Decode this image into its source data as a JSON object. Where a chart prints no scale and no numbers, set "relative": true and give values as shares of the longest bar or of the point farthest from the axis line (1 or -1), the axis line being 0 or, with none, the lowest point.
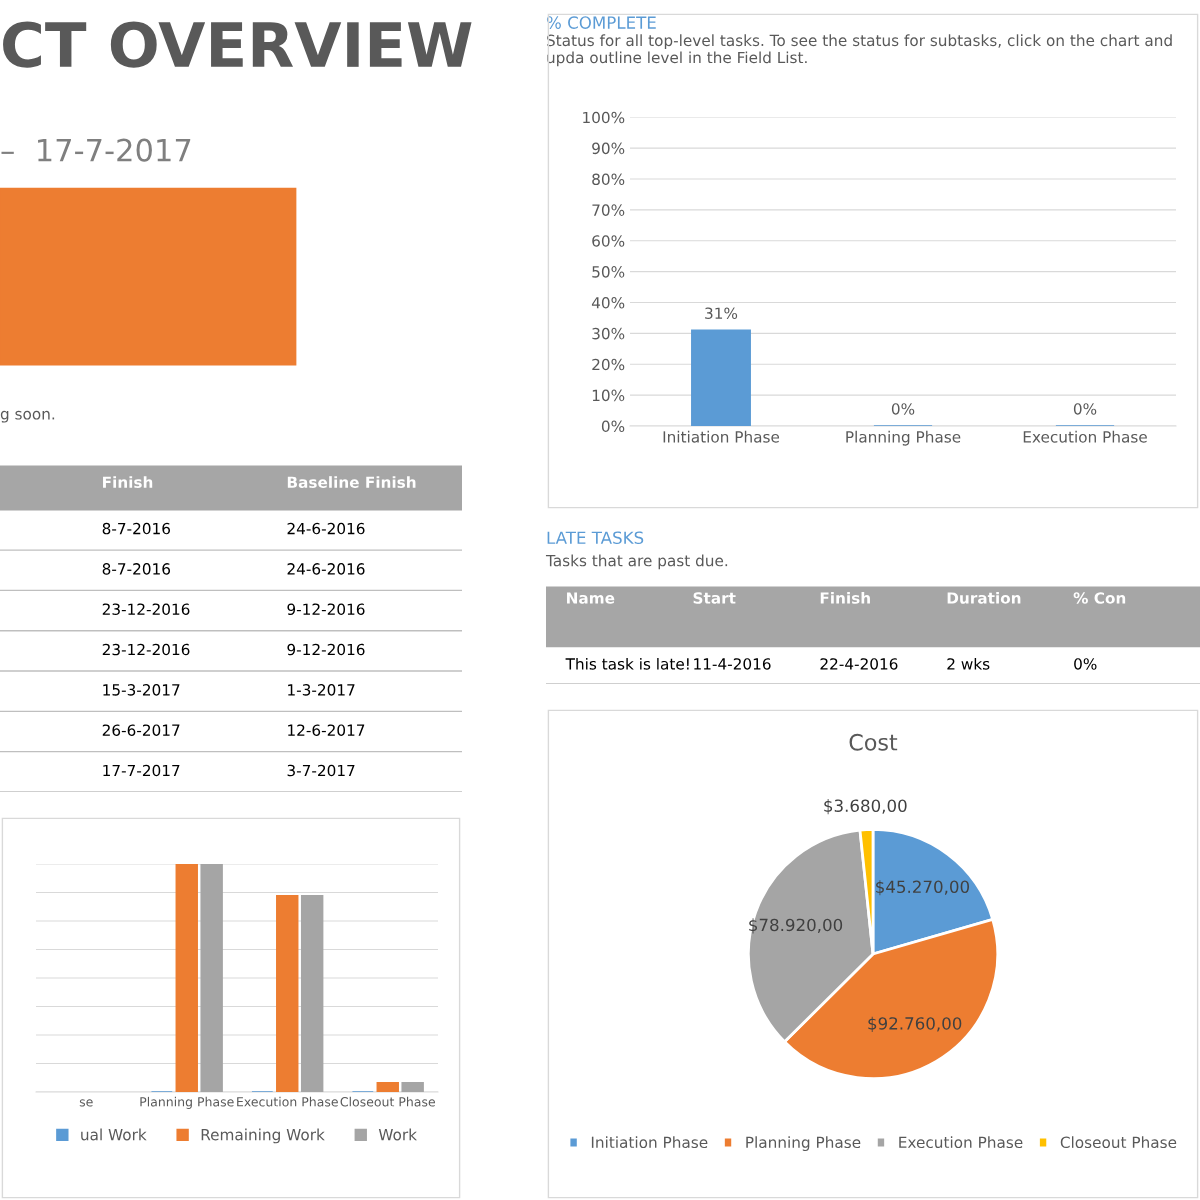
{
  "chart_data": [
    {
      "type": "other",
      "title": "CT OVERVIEW",
      "subtitle": "–  17-7-2017",
      "annotations": [
        "g soon."
      ]
    },
    {
      "type": "other",
      "categories": [
        "Finish",
        "Baseline Finish"
      ],
      "annotations": [
        "8-7-2016",
        "24-6-2016",
        "8-7-2016",
        "24-6-2016",
        "23-12-2016",
        "9-12-2016",
        "23-12-2016",
        "9-12-2016",
        "15-3-2017",
        "1-3-2017",
        "26-6-2017",
        "12-6-2017",
        "17-7-2017",
        "3-7-2017"
      ]
    },
    {
      "type": "bar",
      "title": "% COMPLETE",
      "subtitle": "Status for all top-level tasks. To see the status for subtasks, click on the chart and upda outline level in the Field List.",
      "categories": [
        "Initiation Phase",
        "Planning Phase",
        "Execution Phase"
      ],
      "values": [
        31,
        0,
        0
      ],
      "color": "#5b9bd5",
      "value_labels": [
        "31%",
        "0%",
        "0%"
      ],
      "ylim": [
        0,
        100
      ],
      "yticks": [
        {
          "value": 0,
          "label": "0%"
        },
        {
          "value": 10,
          "label": "10%"
        },
        {
          "value": 20,
          "label": "20%"
        },
        {
          "value": 30,
          "label": "30%"
        },
        {
          "value": 40,
          "label": "40%"
        },
        {
          "value": 50,
          "label": "50%"
        },
        {
          "value": 60,
          "label": "60%"
        },
        {
          "value": 70,
          "label": "70%"
        },
        {
          "value": 80,
          "label": "80%"
        },
        {
          "value": 90,
          "label": "90%"
        },
        {
          "value": 100,
          "label": "100%"
        }
      ],
      "grid": "y"
    },
    {
      "type": "other",
      "title": "LATE TASKS",
      "subtitle": "Tasks that are past due.",
      "categories": [
        "Name",
        "Start",
        "Finish",
        "Duration",
        "% Con"
      ],
      "annotations": [
        "This task is late!",
        "11-4-2016",
        "22-4-2016",
        "2 wks",
        "0%"
      ]
    },
    {
      "type": "bar",
      "relative": true,
      "categories": [
        "se",
        "Planning Phase",
        "Execution Phase",
        "Closeout Phase"
      ],
      "legend": "bottom",
      "grid": "y",
      "series": [
        {
          "name": "ual Work",
          "color": "#5b9bd5",
          "values": [
            null,
            0,
            0,
            0
          ]
        },
        {
          "name": "Remaining Work",
          "color": "#ed7d31",
          "values": [
            null,
            1,
            0.86,
            0.04
          ]
        },
        {
          "name": "Work",
          "color": "#a5a5a5",
          "values": [
            null,
            1,
            0.86,
            0.04
          ]
        }
      ]
    },
    {
      "type": "pie",
      "title": "Cost",
      "categories": [
        "Initiation Phase",
        "Planning Phase",
        "Execution Phase",
        "Closeout Phase"
      ],
      "values": [
        45270,
        92760,
        78920,
        3680
      ],
      "colors": [
        "#5b9bd5",
        "#ed7d31",
        "#a5a5a5",
        "#ffc000"
      ],
      "value_labels": [
        "$45.270,00",
        "$92.760,00",
        "$78.920,00",
        "$3.680,00"
      ],
      "legend": "bottom"
    }
  ]
}
